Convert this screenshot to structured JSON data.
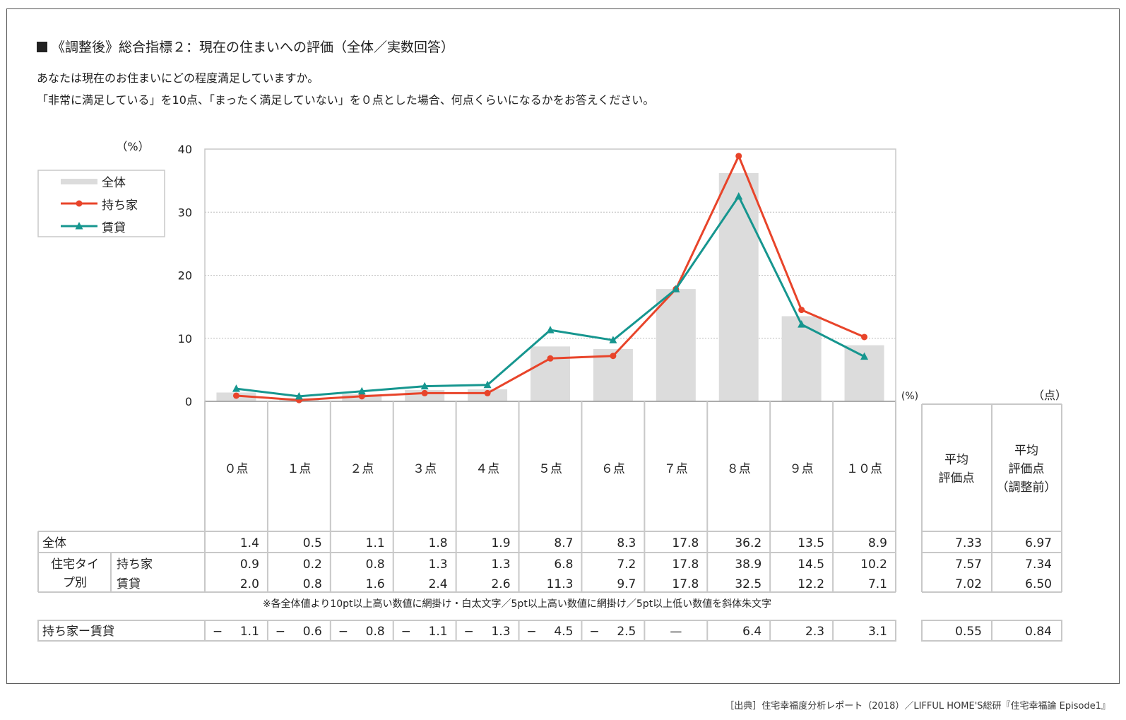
{
  "title": "《調整後》総合指標２：現在の住まいへの評価（全体／実数回答）",
  "question_line1": "あなたは現在のお住まいにどの程度満足していますか。",
  "question_line2": "「非常に満足している」を10点、「まったく満足していない」を０点とした場合、何点くらいになるかをお答えください。",
  "source": "［出典］住宅幸福度分析レポート（2018）／LIFFUL HOME'S総研『住宅幸福論 Episode1』",
  "colors": {
    "overall": "#dcdcdc",
    "owner": "#e8442a",
    "renter": "#16968f",
    "grid": "#bbbbbb",
    "border": "#c8c8c8"
  },
  "chart_data": {
    "type": "bar",
    "unit_label": "（%）",
    "ylim": [
      0,
      40
    ],
    "yticks": [
      0,
      10,
      20,
      30,
      40
    ],
    "categories": [
      "０点",
      "１点",
      "２点",
      "３点",
      "４点",
      "５点",
      "６点",
      "７点",
      "８点",
      "９点",
      "１０点"
    ],
    "legend": [
      "全体",
      "持ち家",
      "賃貸"
    ],
    "series": [
      {
        "name": "全体",
        "kind": "bar",
        "values": [
          1.4,
          0.5,
          1.1,
          1.8,
          1.9,
          8.7,
          8.3,
          17.8,
          36.2,
          13.5,
          8.9
        ]
      },
      {
        "name": "持ち家",
        "kind": "line",
        "marker": "circle",
        "values": [
          0.9,
          0.2,
          0.8,
          1.3,
          1.3,
          6.8,
          7.2,
          17.8,
          38.9,
          14.5,
          10.2
        ]
      },
      {
        "name": "賃貸",
        "kind": "line",
        "marker": "triangle",
        "values": [
          2.0,
          0.8,
          1.6,
          2.4,
          2.6,
          11.3,
          9.7,
          17.8,
          32.5,
          12.2,
          7.1
        ]
      }
    ]
  },
  "table": {
    "pct_label": "(%)",
    "pt_label": "（点）",
    "avg_header": [
      "平均",
      "評価点"
    ],
    "avg_pre_header": [
      "平均",
      "評価点",
      "（調整前）"
    ],
    "row_overall_label": "全体",
    "group_label": [
      "住宅タイ",
      "プ別"
    ],
    "row_owner_label": "持ち家",
    "row_renter_label": "賃貸",
    "overall": [
      "1.4",
      "0.5",
      "1.1",
      "1.8",
      "1.9",
      "8.7",
      "8.3",
      "17.8",
      "36.2",
      "13.5",
      "8.9"
    ],
    "owner": [
      "0.9",
      "0.2",
      "0.8",
      "1.3",
      "1.3",
      "6.8",
      "7.2",
      "17.8",
      "38.9",
      "14.5",
      "10.2"
    ],
    "renter": [
      "2.0",
      "0.8",
      "1.6",
      "2.4",
      "2.6",
      "11.3",
      "9.7",
      "17.8",
      "32.5",
      "12.2",
      "7.1"
    ],
    "avg_overall": [
      "7.33",
      "6.97"
    ],
    "avg_owner": [
      "7.57",
      "7.34"
    ],
    "avg_renter": [
      "7.02",
      "6.50"
    ],
    "note": "※各全体値より10pt以上高い数値に網掛け・白太文字／5pt以上高い数値に網掛け／5pt以上低い数値を斜体朱文字",
    "diff_label": "持ち家ー賃貸",
    "diff_sign": [
      "−",
      "−",
      "−",
      "−",
      "−",
      "−",
      "−",
      "",
      "",
      "",
      ""
    ],
    "diff": [
      "1.1",
      "0.6",
      "0.8",
      "1.1",
      "1.3",
      "4.5",
      "2.5",
      "—",
      "6.4",
      "2.3",
      "3.1"
    ],
    "diff_avg": [
      "0.55",
      "0.84"
    ]
  }
}
